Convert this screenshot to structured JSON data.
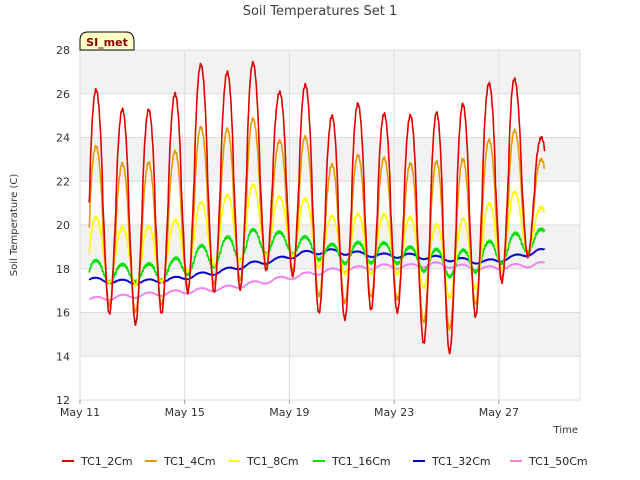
{
  "chart_data": {
    "type": "line",
    "title": "Soil Temperatures Set 1",
    "xlabel": "Time",
    "ylabel": "Soil Temperature (C)",
    "badge": "SI_met",
    "ylim": [
      12,
      28
    ],
    "xlim": [
      0,
      19.1
    ],
    "yticks": [
      12,
      14,
      16,
      18,
      20,
      22,
      24,
      26,
      28
    ],
    "xticks": [
      {
        "day": 0,
        "label": "May 11"
      },
      {
        "day": 4,
        "label": "May 15"
      },
      {
        "day": 8,
        "label": "May 19"
      },
      {
        "day": 12,
        "label": "May 23"
      },
      {
        "day": 16,
        "label": "May 27"
      }
    ],
    "grid": true,
    "legend_position": "bottom",
    "x_start": 0.35,
    "x_end": 17.75,
    "days": [
      0,
      1,
      2,
      3,
      4,
      5,
      6,
      7,
      8,
      9,
      10,
      11,
      12,
      13,
      14,
      15,
      16,
      17
    ],
    "series": [
      {
        "name": "TC1_2Cm",
        "color": "#e00000",
        "daily_mean": [
          20.5,
          20.3,
          20.1,
          20.3,
          21.2,
          21.2,
          20.5,
          21.5,
          21.5,
          21.0,
          19.5,
          20.0,
          20.3,
          19.7,
          18.2,
          19.0,
          20.5,
          21.8
        ],
        "daily_max": [
          26.3,
          25.3,
          25.2,
          25.8,
          27.4,
          26.9,
          27.6,
          26.0,
          26.6,
          24.9,
          25.6,
          25.1,
          25.0,
          25.1,
          25.4,
          26.4,
          27.0,
          24.0
        ],
        "daily_min": [
          16.5,
          15.6,
          15.4,
          16.3,
          17.3,
          16.7,
          17.3,
          18.3,
          17.3,
          15.2,
          16.0,
          16.2,
          15.9,
          13.8,
          14.4,
          16.7,
          17.8,
          19.0
        ]
      },
      {
        "name": "TC1_4Cm",
        "color": "#e69a00",
        "daily_mean": [
          19.8,
          19.6,
          19.6,
          19.8,
          20.6,
          20.6,
          20.5,
          20.8,
          20.8,
          20.2,
          19.4,
          19.6,
          19.8,
          19.2,
          18.6,
          19.0,
          20.0,
          20.8
        ],
        "daily_max": [
          23.7,
          22.8,
          22.8,
          23.2,
          24.5,
          24.3,
          25.0,
          23.8,
          24.2,
          22.7,
          23.2,
          23.1,
          22.8,
          22.9,
          22.9,
          23.8,
          24.5,
          23.0
        ],
        "daily_min": [
          16.7,
          16.1,
          16.0,
          16.6,
          17.5,
          17.2,
          17.7,
          18.3,
          17.7,
          16.2,
          16.6,
          16.8,
          16.5,
          15.0,
          15.4,
          17.0,
          17.9,
          19.2
        ]
      },
      {
        "name": "TC1_8Cm",
        "color": "#ffff00",
        "daily_mean": [
          18.9,
          18.7,
          18.7,
          18.9,
          19.4,
          19.6,
          19.8,
          19.9,
          20.0,
          19.6,
          19.2,
          19.2,
          19.3,
          19.0,
          18.5,
          18.8,
          19.4,
          19.9
        ],
        "daily_max": [
          20.4,
          19.9,
          19.9,
          20.1,
          21.0,
          21.3,
          21.9,
          21.3,
          21.3,
          20.4,
          20.5,
          20.5,
          20.4,
          20.0,
          20.2,
          20.9,
          21.6,
          20.8
        ],
        "daily_min": [
          17.4,
          17.3,
          17.2,
          17.5,
          18.1,
          18.2,
          18.4,
          18.7,
          18.5,
          17.8,
          17.7,
          17.8,
          17.7,
          16.8,
          16.6,
          17.4,
          18.3,
          19.0
        ]
      },
      {
        "name": "TC1_16Cm",
        "color": "#00e000",
        "daily_mean": [
          17.9,
          17.8,
          17.8,
          17.9,
          18.4,
          18.7,
          19.0,
          19.2,
          19.1,
          18.8,
          18.6,
          18.7,
          18.6,
          18.5,
          18.2,
          18.3,
          18.6,
          19.2
        ],
        "daily_max": [
          18.4,
          18.2,
          18.2,
          18.4,
          19.0,
          19.4,
          19.8,
          19.7,
          19.5,
          19.1,
          19.2,
          19.2,
          19.0,
          18.9,
          18.8,
          19.2,
          19.6,
          19.8
        ],
        "daily_min": [
          17.4,
          17.4,
          17.4,
          17.5,
          17.9,
          18.2,
          18.5,
          18.8,
          18.6,
          18.3,
          18.2,
          18.3,
          18.2,
          17.7,
          17.6,
          18.0,
          18.4,
          19.0
        ]
      },
      {
        "name": "TC1_32Cm",
        "color": "#0000cc",
        "daily_mean": [
          17.5,
          17.4,
          17.4,
          17.5,
          17.7,
          17.9,
          18.2,
          18.4,
          18.7,
          18.8,
          18.7,
          18.6,
          18.6,
          18.5,
          18.4,
          18.3,
          18.5,
          18.8
        ],
        "daily_max": [
          17.6,
          17.5,
          17.5,
          17.6,
          17.8,
          18.0,
          18.3,
          18.5,
          18.8,
          18.9,
          18.8,
          18.7,
          18.7,
          18.6,
          18.5,
          18.4,
          18.6,
          18.9
        ],
        "daily_min": [
          17.4,
          17.3,
          17.3,
          17.4,
          17.6,
          17.8,
          18.1,
          18.3,
          18.6,
          18.7,
          18.6,
          18.5,
          18.5,
          18.4,
          18.3,
          18.2,
          18.4,
          18.7
        ]
      },
      {
        "name": "TC1_50Cm",
        "color": "#ee82ee",
        "daily_mean": [
          16.6,
          16.7,
          16.8,
          16.9,
          17.0,
          17.1,
          17.3,
          17.5,
          17.7,
          17.9,
          18.0,
          18.1,
          18.1,
          18.2,
          18.1,
          18.0,
          18.1,
          18.2
        ],
        "daily_max": [
          16.7,
          16.8,
          16.9,
          17.0,
          17.1,
          17.2,
          17.4,
          17.6,
          17.8,
          18.0,
          18.1,
          18.2,
          18.2,
          18.3,
          18.2,
          18.1,
          18.2,
          18.3
        ],
        "daily_min": [
          16.5,
          16.6,
          16.7,
          16.8,
          16.9,
          17.0,
          17.2,
          17.4,
          17.6,
          17.8,
          17.9,
          18.0,
          18.0,
          18.1,
          18.0,
          17.9,
          18.0,
          18.1
        ]
      }
    ]
  }
}
